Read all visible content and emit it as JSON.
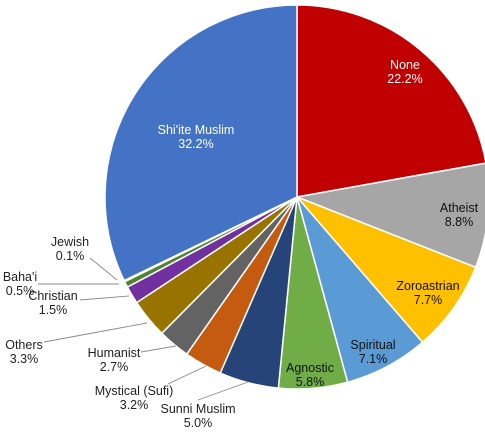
{
  "chart_data": {
    "type": "pie",
    "title": "",
    "slices": [
      {
        "name": "None",
        "value": 22.2,
        "label": "22.2%",
        "color": "#c00000"
      },
      {
        "name": "Atheist",
        "value": 8.8,
        "label": "8.8%",
        "color": "#a6a6a6"
      },
      {
        "name": "Zoroastrian",
        "value": 7.7,
        "label": "7.7%",
        "color": "#ffc000"
      },
      {
        "name": "Spiritual",
        "value": 7.1,
        "label": "7.1%",
        "color": "#5b9bd5"
      },
      {
        "name": "Agnostic",
        "value": 5.8,
        "label": "5.8%",
        "color": "#70ad47"
      },
      {
        "name": "Sunni Muslim",
        "value": 5.0,
        "label": "5.0%",
        "color": "#264478"
      },
      {
        "name": "Mystical (Sufi)",
        "value": 3.2,
        "label": "3.2%",
        "color": "#c55a11"
      },
      {
        "name": "Humanist",
        "value": 2.7,
        "label": "2.7%",
        "color": "#636363"
      },
      {
        "name": "Others",
        "value": 3.3,
        "label": "3.3%",
        "color": "#997300"
      },
      {
        "name": "Christian",
        "value": 1.5,
        "label": "1.5%",
        "color": "#7030a0"
      },
      {
        "name": "Baha'i",
        "value": 0.5,
        "label": "0.5%",
        "color": "#548235"
      },
      {
        "name": "Jewish",
        "value": 0.1,
        "label": "0.1%",
        "color": "#2f5597"
      },
      {
        "name": "Shi'ite Muslim",
        "value": 32.2,
        "label": "32.2%",
        "color": "#4472c4"
      }
    ]
  }
}
